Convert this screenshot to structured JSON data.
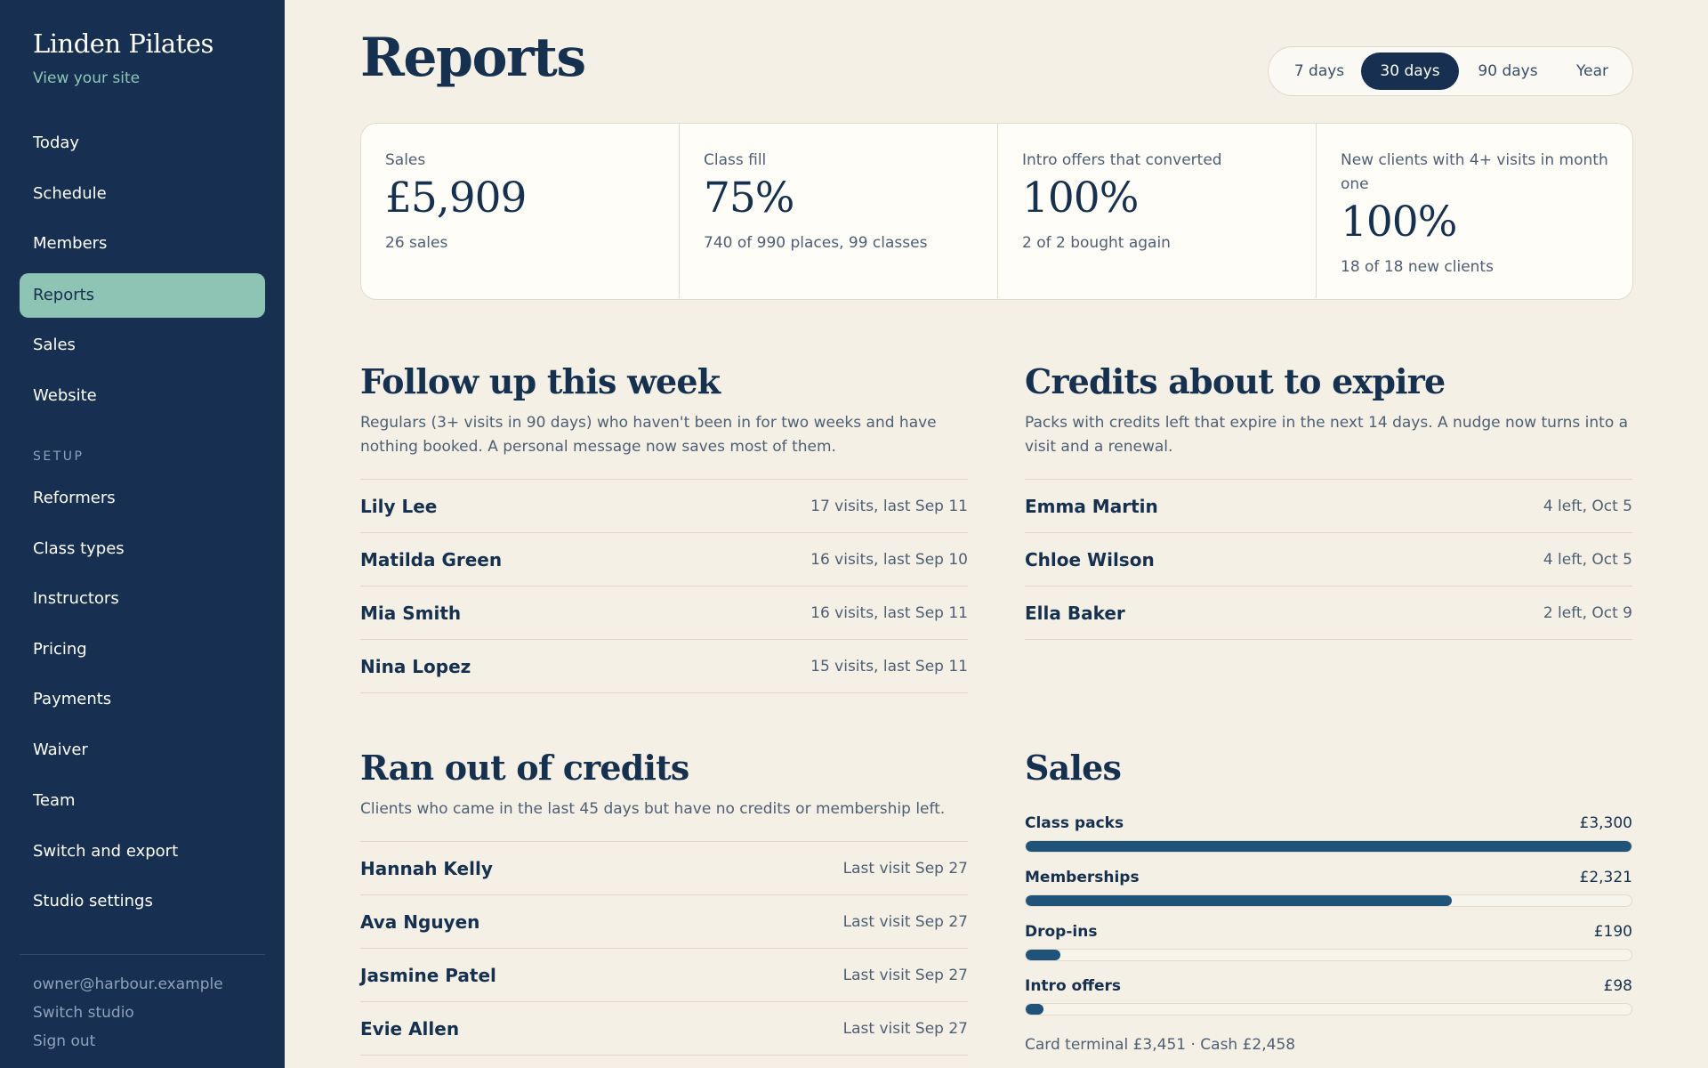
{
  "sidebar": {
    "brand": "Linden Pilates",
    "view_site": "View your site",
    "nav": [
      {
        "label": "Today"
      },
      {
        "label": "Schedule"
      },
      {
        "label": "Members"
      },
      {
        "label": "Reports",
        "active": true
      },
      {
        "label": "Sales"
      },
      {
        "label": "Website"
      }
    ],
    "setup_label": "SETUP",
    "setup": [
      {
        "label": "Reformers"
      },
      {
        "label": "Class types"
      },
      {
        "label": "Instructors"
      },
      {
        "label": "Pricing"
      },
      {
        "label": "Payments"
      },
      {
        "label": "Waiver"
      },
      {
        "label": "Team"
      },
      {
        "label": "Switch and export"
      },
      {
        "label": "Studio settings"
      }
    ],
    "account_email": "owner@harbour.example",
    "switch_studio": "Switch studio",
    "sign_out": "Sign out"
  },
  "header": {
    "title": "Reports",
    "ranges": [
      "7 days",
      "30 days",
      "90 days",
      "Year"
    ],
    "active_range": "30 days"
  },
  "stats": [
    {
      "label": "Sales",
      "value": "£5,909",
      "sub": "26 sales"
    },
    {
      "label": "Class fill",
      "value": "75%",
      "sub": "740 of 990 places, 99 classes"
    },
    {
      "label": "Intro offers that converted",
      "value": "100%",
      "sub": "2 of 2 bought again"
    },
    {
      "label": "New clients with 4+ visits in month one",
      "value": "100%",
      "sub": "18 of 18 new clients"
    }
  ],
  "follow_up": {
    "title": "Follow up this week",
    "desc": "Regulars (3+ visits in 90 days) who haven't been in for two weeks and have nothing booked. A personal message now saves most of them.",
    "rows": [
      {
        "name": "Lily Lee",
        "meta": "17 visits, last Sep 11"
      },
      {
        "name": "Matilda Green",
        "meta": "16 visits, last Sep 10"
      },
      {
        "name": "Mia Smith",
        "meta": "16 visits, last Sep 11"
      },
      {
        "name": "Nina Lopez",
        "meta": "15 visits, last Sep 11"
      }
    ]
  },
  "expiring": {
    "title": "Credits about to expire",
    "desc": "Packs with credits left that expire in the next 14 days. A nudge now turns into a visit and a renewal.",
    "rows": [
      {
        "name": "Emma Martin",
        "meta": "4 left, Oct 5"
      },
      {
        "name": "Chloe Wilson",
        "meta": "4 left, Oct 5"
      },
      {
        "name": "Ella Baker",
        "meta": "2 left, Oct 9"
      }
    ]
  },
  "ran_out": {
    "title": "Ran out of credits",
    "desc": "Clients who came in the last 45 days but have no credits or membership left.",
    "rows": [
      {
        "name": "Hannah Kelly",
        "meta": "Last visit Sep 27"
      },
      {
        "name": "Ava Nguyen",
        "meta": "Last visit Sep 27"
      },
      {
        "name": "Jasmine Patel",
        "meta": "Last visit Sep 27"
      },
      {
        "name": "Evie Allen",
        "meta": "Last visit Sep 27"
      }
    ]
  },
  "sales": {
    "title": "Sales",
    "items": [
      {
        "name": "Class packs",
        "amount": "£3,300",
        "value": 3300
      },
      {
        "name": "Memberships",
        "amount": "£2,321",
        "value": 2321
      },
      {
        "name": "Drop-ins",
        "amount": "£190",
        "value": 190
      },
      {
        "name": "Intro offers",
        "amount": "£98",
        "value": 98
      }
    ],
    "max_value": 3300,
    "footer": "Card terminal £3,451 · Cash £2,458"
  },
  "colors": {
    "sidebar_bg": "#172f50",
    "accent_active": "#8dc4b3",
    "bar_fill": "#1f5379",
    "page_bg": "#f4f0e6"
  }
}
